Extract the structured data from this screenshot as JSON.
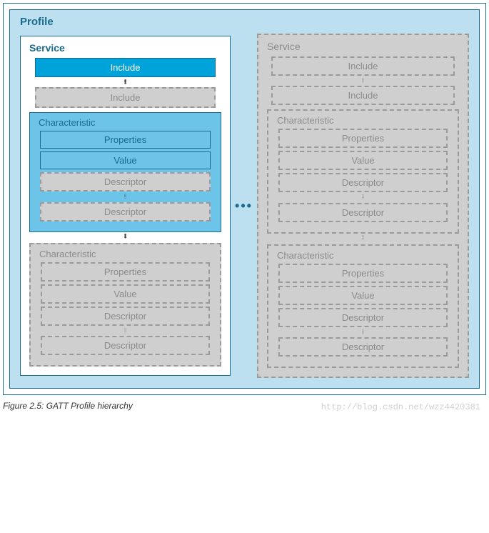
{
  "profile": {
    "label": "Profile"
  },
  "ellipsis_h": "•••",
  "caption": "Figure 2.5:  GATT Profile hierarchy",
  "watermark": "http://blog.csdn.net/wzz4420381",
  "labels": {
    "service": "Service",
    "include": "Include",
    "characteristic": "Characteristic",
    "properties": "Properties",
    "value": "Value",
    "descriptor": "Descriptor"
  },
  "colors": {
    "profile_bg": "#bde0f0",
    "accent": "#1a6b8e",
    "active_block": "#00a3d9",
    "active_char_bg": "#6cc5e9",
    "ghost_bg": "#cfcfcf",
    "ghost_border": "#9a9a9a",
    "ghost_text": "#8b8b8b"
  },
  "structure": {
    "type": "hierarchy",
    "root": "Profile",
    "children": [
      "Service (active)",
      "…",
      "Service (ghost)"
    ],
    "service_contains": [
      "Include (1..n)",
      "Characteristic (1..n)"
    ],
    "characteristic_contains": [
      "Properties",
      "Value",
      "Descriptor (0..n)"
    ]
  }
}
